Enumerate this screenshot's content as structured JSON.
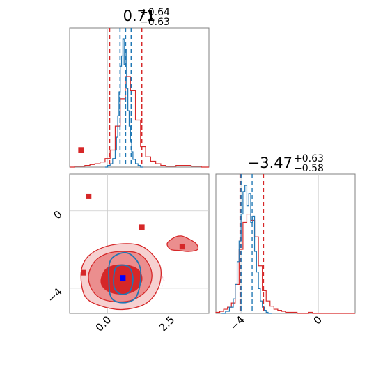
{
  "chart_data": {
    "type": "corner",
    "parameters": [
      {
        "title_value": "0.71",
        "title_upper": "+0.64",
        "title_lower": "−0.63",
        "median": 0.71,
        "ci_lower": 0.08,
        "ci_upper": 1.35,
        "axis_range": [
          -1.5,
          4.0
        ],
        "tick_values": [
          0.0,
          2.5
        ],
        "tick_labels": [
          "0.0",
          "2.5"
        ]
      },
      {
        "title_value": "−3.47",
        "title_upper": "+0.63",
        "title_lower": "−0.58",
        "median": -3.47,
        "ci_lower": -4.05,
        "ci_upper": -2.84,
        "axis_range": [
          -5.3,
          1.9
        ],
        "tick_values": [
          -4,
          0
        ],
        "tick_labels": [
          "−4",
          "0"
        ]
      }
    ],
    "series": [
      {
        "color": "#d62728",
        "style": "steps",
        "hist_1d_param1": {
          "bin_edges": [
            -1.5,
            -1.3,
            -1.1,
            -0.9,
            -0.7,
            -0.5,
            -0.3,
            -0.1,
            0.1,
            0.3,
            0.5,
            0.7,
            0.9,
            1.1,
            1.3,
            1.5,
            1.7,
            1.9,
            2.1,
            2.3,
            2.5,
            2.7,
            2.9,
            3.1,
            3.3,
            3.5,
            3.7,
            3.9,
            4.0
          ],
          "counts": [
            0,
            1,
            1,
            2,
            3,
            4,
            6,
            10,
            20,
            48,
            80,
            106,
            90,
            55,
            24,
            12,
            7,
            4,
            2,
            1,
            1,
            2,
            2,
            2,
            1,
            1,
            0,
            0
          ]
        },
        "hist_1d_param2": {
          "bin_edges": [
            -5.3,
            -5.1,
            -4.9,
            -4.7,
            -4.5,
            -4.3,
            -4.1,
            -3.9,
            -3.7,
            -3.5,
            -3.3,
            -3.1,
            -2.9,
            -2.7,
            -2.5,
            -2.3,
            -2.1,
            -1.9,
            -1.7,
            -1.5,
            -1.3,
            -1.1,
            -0.9,
            -0.7,
            -0.5,
            -0.3,
            -0.1,
            0.1,
            0.3,
            0.5,
            0.7,
            0.9,
            1.1,
            1.3,
            1.5,
            1.7,
            1.9
          ],
          "counts": [
            1,
            2,
            4,
            6,
            10,
            28,
            62,
            88,
            96,
            90,
            74,
            46,
            22,
            12,
            7,
            4,
            3,
            2,
            1,
            1,
            1,
            0,
            0,
            0,
            1,
            0,
            0,
            0,
            0,
            0,
            0,
            0,
            0,
            0,
            0,
            0
          ]
        },
        "contours_2d": [
          {
            "level": "outer",
            "fill": "#f6d0d0",
            "points": [
              [
                -1.05,
                -3.2
              ],
              [
                -0.8,
                -2.4
              ],
              [
                -0.2,
                -1.9
              ],
              [
                0.6,
                -1.7
              ],
              [
                1.3,
                -1.8
              ],
              [
                1.8,
                -2.3
              ],
              [
                2.1,
                -3.0
              ],
              [
                2.0,
                -4.0
              ],
              [
                1.5,
                -4.8
              ],
              [
                0.6,
                -5.1
              ],
              [
                -0.3,
                -4.9
              ],
              [
                -0.9,
                -4.4
              ]
            ]
          },
          {
            "level": "middle",
            "fill": "#eb8e8e",
            "points": [
              [
                -0.75,
                -3.3
              ],
              [
                -0.5,
                -2.6
              ],
              [
                0.0,
                -2.2
              ],
              [
                0.6,
                -2.1
              ],
              [
                1.2,
                -2.2
              ],
              [
                1.6,
                -2.7
              ],
              [
                1.75,
                -3.4
              ],
              [
                1.55,
                -4.1
              ],
              [
                1.0,
                -4.6
              ],
              [
                0.3,
                -4.7
              ],
              [
                -0.3,
                -4.5
              ],
              [
                -0.65,
                -4.0
              ]
            ]
          },
          {
            "level": "inner",
            "fill": "#d62728",
            "points": [
              [
                -0.25,
                -3.5
              ],
              [
                -0.05,
                -3.0
              ],
              [
                0.4,
                -2.8
              ],
              [
                0.9,
                -2.85
              ],
              [
                1.25,
                -3.1
              ],
              [
                1.35,
                -3.6
              ],
              [
                1.1,
                -4.1
              ],
              [
                0.6,
                -4.3
              ],
              [
                0.1,
                -4.2
              ],
              [
                -0.2,
                -3.9
              ]
            ]
          },
          {
            "level": "island",
            "fill": "#eb8e8e",
            "points": [
              [
                2.35,
                -1.7
              ],
              [
                2.6,
                -1.4
              ],
              [
                2.9,
                -1.3
              ],
              [
                3.2,
                -1.45
              ],
              [
                3.5,
                -1.7
              ],
              [
                3.55,
                -2.0
              ],
              [
                3.2,
                -2.1
              ],
              [
                2.85,
                -2.05
              ],
              [
                2.5,
                -2.0
              ]
            ]
          }
        ],
        "outlier_points": [
          [
            -1.05,
            3.15
          ],
          [
            -0.75,
            0.75
          ],
          [
            1.35,
            -0.85
          ],
          [
            2.95,
            -1.85
          ],
          [
            -0.95,
            -3.2
          ]
        ]
      },
      {
        "color": "#1f77b4",
        "style": "steps",
        "hist_1d_param1": {
          "bin_edges": [
            -0.1,
            0.0,
            0.1,
            0.2,
            0.3,
            0.35,
            0.4,
            0.45,
            0.5,
            0.55,
            0.6,
            0.65,
            0.7,
            0.75,
            0.8,
            0.85,
            0.9,
            0.95,
            1.0,
            1.1,
            1.2,
            1.3,
            1.4
          ],
          "counts": [
            0,
            2,
            4,
            10,
            20,
            35,
            60,
            88,
            118,
            130,
            150,
            120,
            138,
            92,
            66,
            48,
            30,
            18,
            9,
            4,
            2,
            0
          ]
        },
        "hist_1d_param2": {
          "bin_edges": [
            -5.0,
            -4.8,
            -4.6,
            -4.4,
            -4.3,
            -4.2,
            -4.1,
            -4.0,
            -3.9,
            -3.8,
            -3.7,
            -3.6,
            -3.5,
            -3.4,
            -3.3,
            -3.2,
            -3.1,
            -3.0,
            -2.9,
            -2.8,
            -2.7,
            -2.6,
            -2.4
          ],
          "counts": [
            0,
            2,
            6,
            14,
            28,
            50,
            70,
            96,
            118,
            124,
            104,
            116,
            88,
            94,
            60,
            40,
            24,
            12,
            6,
            3,
            1,
            0
          ]
        },
        "contours_2d": [
          {
            "level": "outer",
            "points": [
              [
                0.1,
                -2.6
              ],
              [
                0.5,
                -2.2
              ],
              [
                0.9,
                -2.25
              ],
              [
                1.25,
                -2.8
              ],
              [
                1.3,
                -3.6
              ],
              [
                1.1,
                -4.5
              ],
              [
                0.6,
                -4.75
              ],
              [
                0.15,
                -4.5
              ],
              [
                0.05,
                -3.6
              ]
            ]
          },
          {
            "level": "inner",
            "points": [
              [
                0.3,
                -3.0
              ],
              [
                0.6,
                -2.8
              ],
              [
                0.9,
                -3.0
              ],
              [
                1.0,
                -3.6
              ],
              [
                0.85,
                -4.2
              ],
              [
                0.5,
                -4.3
              ],
              [
                0.25,
                -3.9
              ]
            ]
          }
        ],
        "median_marker": [
          0.6,
          -3.47
        ]
      }
    ],
    "median_marker_color": "#0000ff",
    "grid": true
  }
}
